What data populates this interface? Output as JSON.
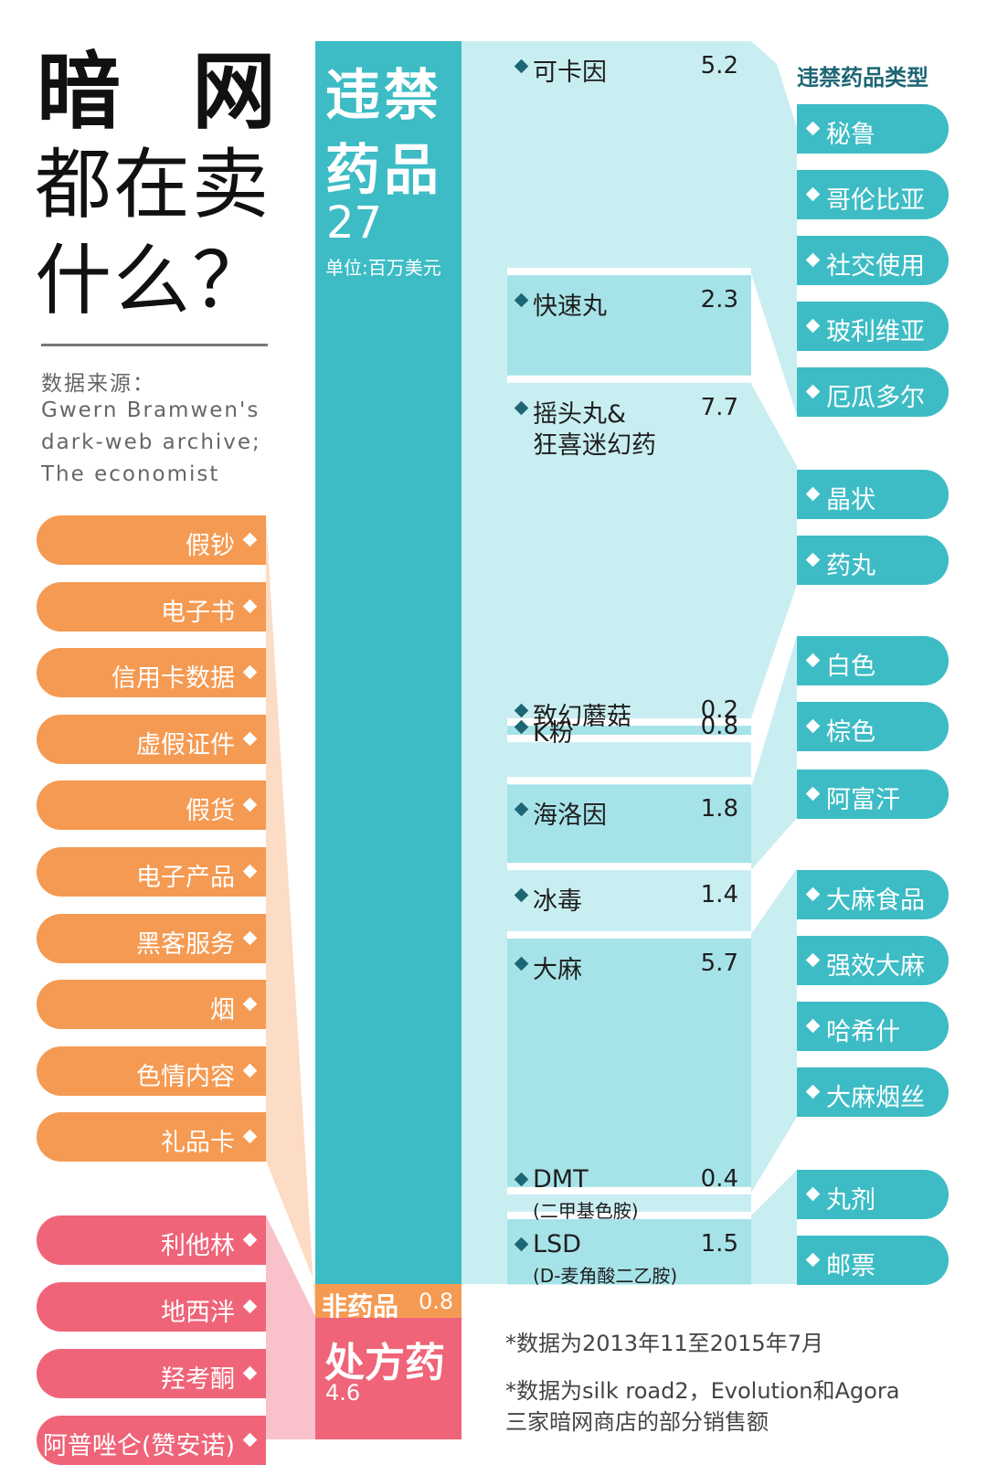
{
  "title": {
    "line1a": "暗",
    "line1b": "网",
    "line2": "都在卖",
    "line3": "什么？"
  },
  "source": {
    "label": "数据来源：",
    "line1": "Gwern Bramwen's",
    "line2": "dark-web archive;",
    "line3": "The economist"
  },
  "main": {
    "title1": "违禁",
    "title2": "药品",
    "total": "27",
    "unit": "单位:百万美元",
    "nondrug_label": "非药品",
    "nondrug_value": "0.8",
    "rx_label": "处方药",
    "rx_value": "4.6"
  },
  "chart_data": {
    "type": "bar",
    "unit": "单位:百万美元",
    "stacked_main": [
      {
        "name": "违禁药品",
        "value": 27
      },
      {
        "name": "非药品",
        "value": 0.8
      },
      {
        "name": "处方药",
        "value": 4.6
      }
    ],
    "drugs": [
      {
        "label": "可卡因",
        "sub": "",
        "value": 5.2
      },
      {
        "label": "快速丸",
        "sub": "",
        "value": 2.3
      },
      {
        "label": "摇头丸&",
        "label2": "狂喜迷幻药",
        "sub": "",
        "value": 7.7
      },
      {
        "label": "致幻蘑菇",
        "sub": "",
        "value": 0.2
      },
      {
        "label": "K粉",
        "sub": "",
        "value": 0.8
      },
      {
        "label": "海洛因",
        "sub": "",
        "value": 1.8
      },
      {
        "label": "冰毒",
        "sub": "",
        "value": 1.4
      },
      {
        "label": "大麻",
        "sub": "",
        "value": 5.7
      },
      {
        "label": "DMT",
        "sub": "(二甲基色胺)",
        "value": 0.4
      },
      {
        "label": "LSD",
        "sub": "(D-麦角酸二乙胺)",
        "value": 1.5
      }
    ]
  },
  "types": {
    "header": "违禁药品类型",
    "items": [
      "秘鲁",
      "哥伦比亚",
      "社交使用",
      "玻利维亚",
      "厄瓜多尔",
      "晶状",
      "药丸",
      "白色",
      "棕色",
      "阿富汗",
      "大麻食品",
      "强效大麻",
      "哈希什",
      "大麻烟丝",
      "丸剂",
      "邮票"
    ]
  },
  "nondrugs": [
    "假钞",
    "电子书",
    "信用卡数据",
    "虚假证件",
    "假货",
    "电子产品",
    "黑客服务",
    "烟",
    "色情内容",
    "礼品卡"
  ],
  "rx": [
    "利他林",
    "地西泮",
    "羟考酮",
    "阿普唑仑(赞安诺)"
  ],
  "notes": {
    "n1": "*数据为2013年11至2015年7月",
    "n2": "*数据为silk road2，Evolution和Agora",
    "n3": "三家暗网商店的部分销售额"
  },
  "colors": {
    "teal": "#3dbcc5",
    "light_teal": "#a6e3e8",
    "pale_teal": "#c9eef1",
    "orange": "#f59a52",
    "pink": "#ef6478",
    "peach": "#fcdcc4",
    "light_pink": "#f9c2cb"
  }
}
